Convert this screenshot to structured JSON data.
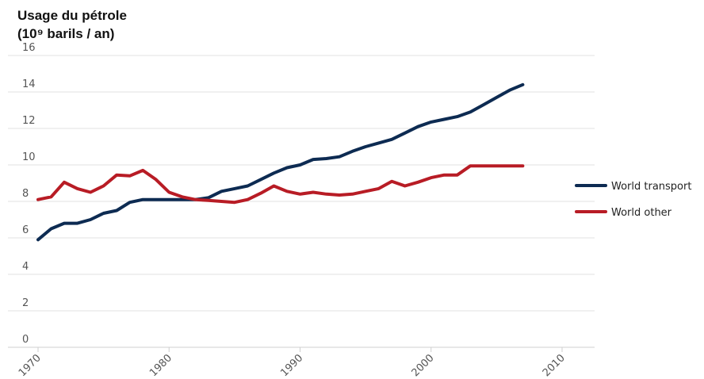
{
  "chart_data": {
    "type": "line",
    "title_lines": [
      "Usage du pétrole",
      "(10⁹ barils / an)"
    ],
    "xlim": [
      1970,
      2012
    ],
    "ylim": [
      0,
      16
    ],
    "x_ticks": [
      "1970",
      "1980",
      "1990",
      "2000",
      "2010"
    ],
    "y_ticks": [
      "0",
      "2",
      "4",
      "6",
      "8",
      "10",
      "12",
      "14",
      "16"
    ],
    "grid": true,
    "legend_position": "right",
    "series": [
      {
        "name": "World transport",
        "color": "#0d2b52",
        "points": [
          [
            1970,
            5.9
          ],
          [
            1971,
            6.5
          ],
          [
            1972,
            6.8
          ],
          [
            1973,
            6.8
          ],
          [
            1974,
            7.0
          ],
          [
            1975,
            7.35
          ],
          [
            1976,
            7.5
          ],
          [
            1977,
            7.95
          ],
          [
            1978,
            8.1
          ],
          [
            1979,
            8.1
          ],
          [
            1980,
            8.1
          ],
          [
            1981,
            8.1
          ],
          [
            1982,
            8.1
          ],
          [
            1983,
            8.2
          ],
          [
            1984,
            8.55
          ],
          [
            1985,
            8.7
          ],
          [
            1986,
            8.85
          ],
          [
            1987,
            9.2
          ],
          [
            1988,
            9.55
          ],
          [
            1989,
            9.85
          ],
          [
            1990,
            10.0
          ],
          [
            1991,
            10.3
          ],
          [
            1992,
            10.35
          ],
          [
            1993,
            10.45
          ],
          [
            1994,
            10.75
          ],
          [
            1995,
            11.0
          ],
          [
            1996,
            11.2
          ],
          [
            1997,
            11.4
          ],
          [
            1998,
            11.75
          ],
          [
            1999,
            12.1
          ],
          [
            2000,
            12.35
          ],
          [
            2001,
            12.5
          ],
          [
            2002,
            12.65
          ],
          [
            2003,
            12.9
          ],
          [
            2004,
            13.3
          ],
          [
            2005,
            13.7
          ],
          [
            2006,
            14.1
          ],
          [
            2007,
            14.4
          ]
        ]
      },
      {
        "name": "World other",
        "color": "#b81c25",
        "points": [
          [
            1970,
            8.1
          ],
          [
            1971,
            8.25
          ],
          [
            1972,
            9.05
          ],
          [
            1973,
            8.7
          ],
          [
            1974,
            8.5
          ],
          [
            1975,
            8.85
          ],
          [
            1976,
            9.45
          ],
          [
            1977,
            9.4
          ],
          [
            1978,
            9.7
          ],
          [
            1979,
            9.2
          ],
          [
            1980,
            8.5
          ],
          [
            1981,
            8.25
          ],
          [
            1982,
            8.1
          ],
          [
            1983,
            8.05
          ],
          [
            1984,
            8.0
          ],
          [
            1985,
            7.95
          ],
          [
            1986,
            8.1
          ],
          [
            1987,
            8.45
          ],
          [
            1988,
            8.85
          ],
          [
            1989,
            8.55
          ],
          [
            1990,
            8.4
          ],
          [
            1991,
            8.5
          ],
          [
            1992,
            8.4
          ],
          [
            1993,
            8.35
          ],
          [
            1994,
            8.4
          ],
          [
            1995,
            8.55
          ],
          [
            1996,
            8.7
          ],
          [
            1997,
            9.1
          ],
          [
            1998,
            8.85
          ],
          [
            1999,
            9.05
          ],
          [
            2000,
            9.3
          ],
          [
            2001,
            9.45
          ],
          [
            2002,
            9.45
          ],
          [
            2003,
            9.95
          ],
          [
            2004,
            9.95
          ],
          [
            2005,
            9.95
          ],
          [
            2006,
            9.95
          ],
          [
            2007,
            9.95
          ]
        ]
      }
    ]
  }
}
